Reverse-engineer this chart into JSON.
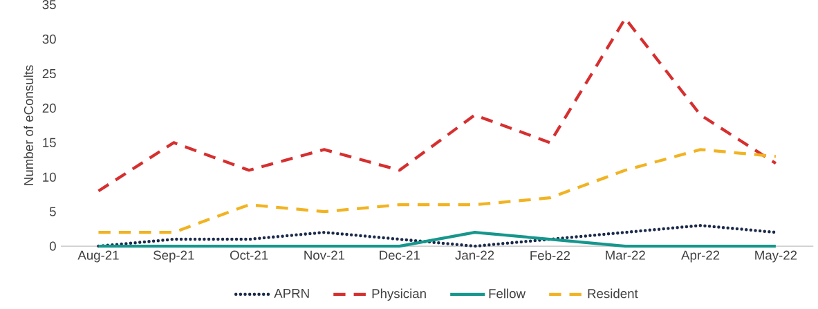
{
  "chart_data": {
    "type": "line",
    "ylabel": "Number of eConsults",
    "categories": [
      "Aug-21",
      "Sep-21",
      "Oct-21",
      "Nov-21",
      "Dec-21",
      "Jan-22",
      "Feb-22",
      "Mar-22",
      "Apr-22",
      "May-22"
    ],
    "series": [
      {
        "name": "APRN",
        "color": "#1b2a4a",
        "line_style": "dotted",
        "values": [
          0,
          1,
          1,
          2,
          1,
          0,
          1,
          2,
          3,
          2
        ]
      },
      {
        "name": "Physician",
        "color": "#d62f2f",
        "line_style": "dashed",
        "values": [
          8,
          15,
          11,
          14,
          11,
          19,
          15,
          33,
          19,
          12
        ]
      },
      {
        "name": "Fellow",
        "color": "#16968c",
        "line_style": "solid",
        "values": [
          0,
          0,
          0,
          0,
          0,
          2,
          1,
          0,
          0,
          0
        ]
      },
      {
        "name": "Resident",
        "color": "#f1b322",
        "line_style": "dashed",
        "values": [
          2,
          2,
          6,
          5,
          6,
          6,
          7,
          11,
          14,
          13
        ]
      }
    ],
    "ylim": [
      0,
      35
    ],
    "yticks": [
      0,
      5,
      10,
      15,
      20,
      25,
      30,
      35
    ],
    "grid": false,
    "legend": "bottom",
    "marker": "none"
  }
}
